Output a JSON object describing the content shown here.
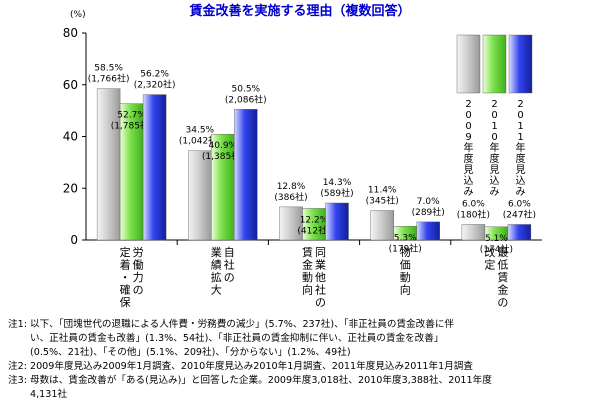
{
  "chart_data": {
    "type": "bar",
    "title": "賃金改善を実施する理由（複数回答）",
    "ylabel": "(%)",
    "ylim": [
      0,
      80
    ],
    "yticks": [
      0,
      20,
      40,
      60,
      80
    ],
    "grid": false,
    "legend_position": "top-right",
    "categories": [
      [
        "定着・確保",
        "労働力の"
      ],
      [
        "業績拡大",
        "自社の"
      ],
      [
        "賃金動向",
        "同業他社の"
      ],
      [
        "物価動向"
      ],
      [
        "改定",
        "最低賃金の"
      ]
    ],
    "series": [
      {
        "name": "2009年度見込み",
        "color": "#b8b8b8",
        "values": [
          58.5,
          34.5,
          12.8,
          11.4,
          6.0
        ],
        "labels": [
          [
            "58.5%",
            "(1,766社)"
          ],
          [
            "34.5%",
            "(1,042社)"
          ],
          [
            "12.8%",
            "(386社)"
          ],
          [
            "11.4%",
            "(345社)"
          ],
          [
            "6.0%",
            "(180社)"
          ]
        ]
      },
      {
        "name": "2010年度見込み",
        "color": "#66dd33",
        "values": [
          52.7,
          40.9,
          12.2,
          5.3,
          5.1
        ],
        "labels": [
          [
            "52.7%",
            "(1,785社)"
          ],
          [
            "40.9%",
            "(1,385社)"
          ],
          [
            "12.2%",
            "(412社)"
          ],
          [
            "5.3%",
            "(179社)"
          ],
          [
            "5.1%",
            "(174社)"
          ]
        ]
      },
      {
        "name": "2011年度見込み",
        "color": "#2233dd",
        "values": [
          56.2,
          50.5,
          14.3,
          7.0,
          6.0
        ],
        "labels": [
          [
            "56.2%",
            "(2,320社)"
          ],
          [
            "50.5%",
            "(2,086社)"
          ],
          [
            "14.3%",
            "(589社)"
          ],
          [
            "7.0%",
            "(289社)"
          ],
          [
            "6.0%",
            "(247社)"
          ]
        ]
      }
    ]
  },
  "notes": {
    "line1": "注1: 以下、「団塊世代の退職による人件費・労務費の減少」(5.7%、237社)、「非正社員の賃金改善に伴",
    "line2": "い、正社員の賃金も改善」(1.3%、54社)、「非正社員の賃金抑制に伴い、正社員の賃金を改善」",
    "line3": "(0.5%、21社)、「その他」(5.1%、209社)、「分からない」(1.2%、49社)",
    "line4": "注2: 2009年度見込み2009年1月調査、2010年度見込み2010年1月調査、2011年度見込み2011年1月調査",
    "line5": "注3: 母数は、賃金改善が「ある(見込み)」と回答した企業。2009年度3,018社、2010年度3,388社、2011年度",
    "line6": "4,131社"
  }
}
